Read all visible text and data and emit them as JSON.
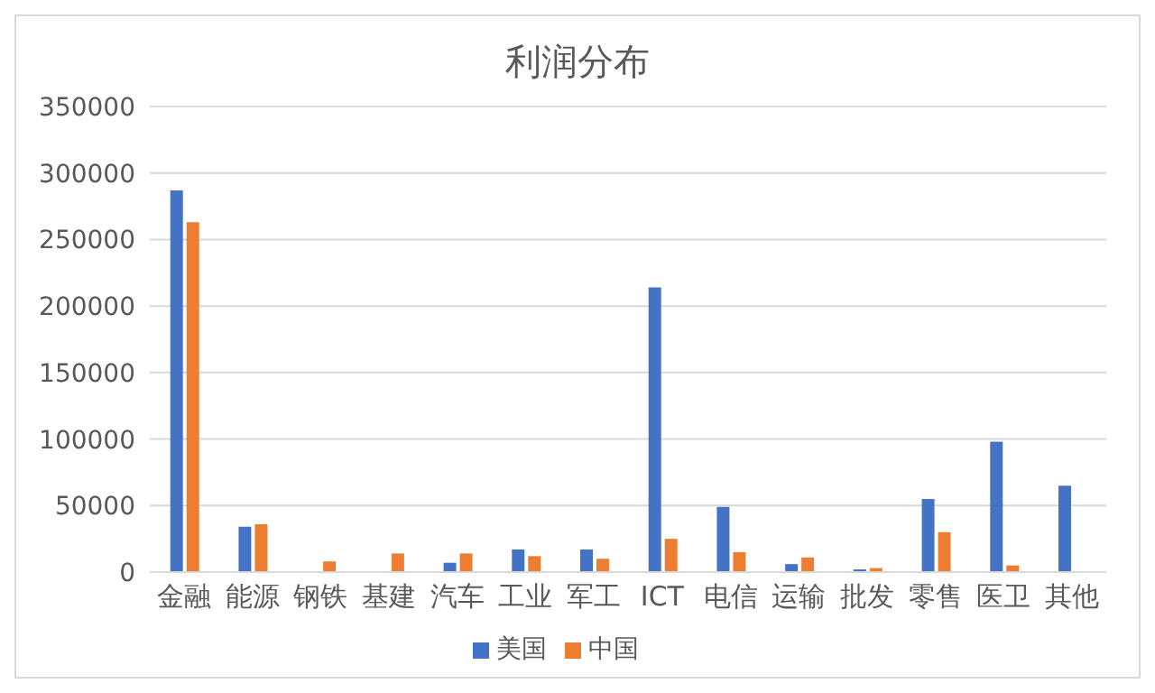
{
  "chart_data": {
    "type": "bar",
    "title": "利润分布",
    "categories": [
      "金融",
      "能源",
      "钢铁",
      "基建",
      "汽车",
      "工业",
      "军工",
      "ICT",
      "电信",
      "运输",
      "批发",
      "零售",
      "医卫",
      "其他"
    ],
    "series": [
      {
        "name": "美国",
        "color": "#4472c4",
        "values": [
          287000,
          34000,
          0,
          0,
          7000,
          17000,
          17000,
          214000,
          49000,
          6000,
          2000,
          55000,
          98000,
          65000
        ]
      },
      {
        "name": "中国",
        "color": "#ed7d31",
        "values": [
          263000,
          36000,
          8000,
          14000,
          14000,
          12000,
          10000,
          25000,
          15000,
          11000,
          3000,
          30000,
          5000,
          0
        ]
      }
    ],
    "ylim": [
      0,
      350000
    ],
    "yticks": [
      0,
      50000,
      100000,
      150000,
      200000,
      250000,
      300000,
      350000
    ],
    "grid": "y",
    "legend": "bottom"
  }
}
